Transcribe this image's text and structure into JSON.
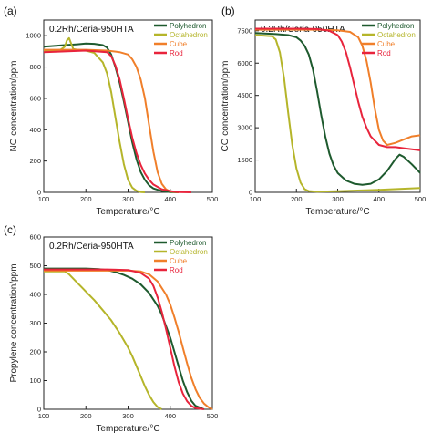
{
  "colors": {
    "Polyhedron": "#1e5a2e",
    "Octahedron": "#b5b52a",
    "Cube": "#f07f2a",
    "Rod": "#e8243c"
  },
  "chart_data": [
    {
      "type": "line",
      "panel_label": "(a)",
      "title": "0.2Rh/Ceria-950HTA",
      "xlabel": "Temperature/°C",
      "ylabel": "NO concentration/ppm",
      "xlim": [
        100,
        500
      ],
      "ylim": [
        0,
        1100
      ],
      "xticks": [
        100,
        200,
        300,
        400,
        500
      ],
      "yticks": [
        0,
        200,
        400,
        600,
        800,
        1000
      ],
      "grid": false,
      "legend": "top-right",
      "series": [
        {
          "name": "Polyhedron",
          "x": [
            100,
            150,
            180,
            200,
            220,
            240,
            250,
            260,
            270,
            280,
            290,
            300,
            310,
            320,
            330,
            340,
            350,
            360,
            380,
            400,
            420
          ],
          "y": [
            930,
            940,
            945,
            950,
            948,
            940,
            925,
            880,
            800,
            700,
            580,
            450,
            320,
            210,
            130,
            80,
            45,
            25,
            8,
            2,
            0
          ]
        },
        {
          "name": "Octahedron",
          "x": [
            100,
            140,
            150,
            155,
            160,
            165,
            170,
            180,
            200,
            220,
            240,
            250,
            260,
            270,
            280,
            290,
            300,
            310,
            320,
            330,
            340
          ],
          "y": [
            900,
            910,
            930,
            970,
            985,
            950,
            915,
            910,
            905,
            890,
            830,
            760,
            640,
            480,
            320,
            180,
            80,
            30,
            10,
            2,
            0
          ]
        },
        {
          "name": "Cube",
          "x": [
            100,
            150,
            200,
            250,
            280,
            300,
            310,
            320,
            330,
            340,
            350,
            360,
            370,
            380,
            390,
            400,
            420
          ],
          "y": [
            910,
            910,
            910,
            905,
            895,
            880,
            850,
            800,
            720,
            600,
            430,
            260,
            130,
            55,
            20,
            6,
            0
          ]
        },
        {
          "name": "Rod",
          "x": [
            100,
            150,
            200,
            250,
            260,
            270,
            280,
            290,
            300,
            310,
            320,
            330,
            340,
            350,
            360,
            380,
            400,
            420,
            450
          ],
          "y": [
            895,
            900,
            905,
            895,
            870,
            810,
            720,
            600,
            470,
            350,
            250,
            175,
            120,
            80,
            50,
            20,
            8,
            2,
            0
          ]
        }
      ]
    },
    {
      "type": "line",
      "panel_label": "(b)",
      "title": "0.2Rh/Ceria-950HTA",
      "xlabel": "Temperature/°C",
      "ylabel": "CO concentration/ppm",
      "xlim": [
        100,
        500
      ],
      "ylim": [
        0,
        8000
      ],
      "xticks": [
        100,
        200,
        300,
        400,
        500
      ],
      "yticks": [
        0,
        1500,
        3000,
        4500,
        6000,
        7500
      ],
      "grid": false,
      "legend": "top-right",
      "series": [
        {
          "name": "Polyhedron",
          "x": [
            100,
            150,
            180,
            200,
            210,
            220,
            230,
            240,
            250,
            260,
            270,
            280,
            290,
            300,
            320,
            340,
            360,
            380,
            400,
            420,
            440,
            450,
            460,
            480,
            500
          ],
          "y": [
            7400,
            7350,
            7300,
            7200,
            7050,
            6800,
            6400,
            5700,
            4700,
            3600,
            2600,
            1800,
            1250,
            900,
            550,
            400,
            350,
            400,
            600,
            1000,
            1550,
            1750,
            1650,
            1300,
            900
          ]
        },
        {
          "name": "Octahedron",
          "x": [
            100,
            140,
            150,
            160,
            170,
            180,
            190,
            200,
            210,
            220,
            230,
            250,
            300,
            400,
            500
          ],
          "y": [
            7300,
            7250,
            7100,
            6500,
            5300,
            3700,
            2200,
            1100,
            450,
            150,
            60,
            30,
            50,
            120,
            200
          ]
        },
        {
          "name": "Cube",
          "x": [
            100,
            150,
            200,
            250,
            300,
            330,
            350,
            360,
            370,
            380,
            390,
            400,
            410,
            420,
            440,
            460,
            480,
            500
          ],
          "y": [
            7550,
            7550,
            7550,
            7550,
            7520,
            7450,
            7200,
            6800,
            6100,
            5100,
            3900,
            2900,
            2400,
            2200,
            2300,
            2450,
            2600,
            2650
          ]
        },
        {
          "name": "Rod",
          "x": [
            100,
            150,
            200,
            250,
            280,
            300,
            310,
            320,
            330,
            340,
            350,
            360,
            370,
            380,
            400,
            420,
            440,
            460,
            480,
            500
          ],
          "y": [
            7600,
            7600,
            7600,
            7580,
            7500,
            7300,
            7000,
            6500,
            5800,
            5000,
            4200,
            3500,
            3000,
            2600,
            2200,
            2100,
            2100,
            2050,
            2000,
            1950
          ]
        }
      ]
    },
    {
      "type": "line",
      "panel_label": "(c)",
      "title": "0.2Rh/Ceria-950HTA",
      "xlabel": "Temperature/°C",
      "ylabel": "Propylene concentration/ppm",
      "xlim": [
        100,
        500
      ],
      "ylim": [
        0,
        600
      ],
      "xticks": [
        100,
        200,
        300,
        400,
        500
      ],
      "yticks": [
        0,
        100,
        200,
        300,
        400,
        500,
        600
      ],
      "grid": false,
      "legend": "top-right",
      "series": [
        {
          "name": "Polyhedron",
          "x": [
            100,
            150,
            200,
            230,
            250,
            270,
            290,
            310,
            330,
            350,
            370,
            380,
            390,
            400,
            410,
            420,
            430,
            440,
            450,
            460,
            480
          ],
          "y": [
            490,
            490,
            490,
            488,
            485,
            478,
            468,
            455,
            435,
            405,
            360,
            330,
            290,
            250,
            200,
            150,
            100,
            60,
            30,
            12,
            0
          ]
        },
        {
          "name": "Octahedron",
          "x": [
            100,
            150,
            160,
            170,
            180,
            190,
            200,
            220,
            240,
            260,
            280,
            300,
            310,
            320,
            330,
            340,
            350,
            360,
            370,
            380
          ],
          "y": [
            480,
            480,
            470,
            455,
            440,
            425,
            410,
            380,
            345,
            310,
            265,
            215,
            185,
            150,
            115,
            80,
            50,
            25,
            8,
            0
          ]
        },
        {
          "name": "Cube",
          "x": [
            100,
            150,
            200,
            250,
            300,
            330,
            350,
            370,
            390,
            400,
            410,
            420,
            430,
            440,
            450,
            460,
            470,
            480,
            490,
            500
          ],
          "y": [
            483,
            483,
            483,
            483,
            483,
            480,
            470,
            445,
            400,
            365,
            320,
            270,
            215,
            160,
            110,
            70,
            40,
            20,
            8,
            0
          ]
        },
        {
          "name": "Rod",
          "x": [
            100,
            150,
            200,
            250,
            300,
            330,
            350,
            360,
            370,
            380,
            390,
            400,
            410,
            420,
            430,
            440,
            450,
            460,
            480
          ],
          "y": [
            487,
            487,
            487,
            487,
            485,
            475,
            455,
            430,
            390,
            340,
            280,
            215,
            150,
            95,
            55,
            28,
            12,
            4,
            0
          ]
        }
      ]
    }
  ]
}
